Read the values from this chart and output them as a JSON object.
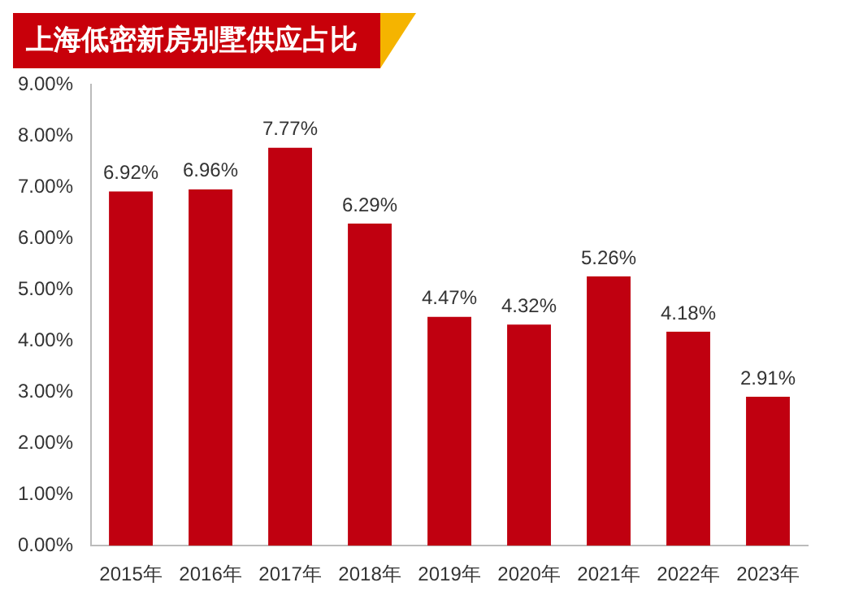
{
  "chart_data": {
    "type": "bar",
    "title": "上海低密新房别墅供应占比",
    "categories": [
      "2015年",
      "2016年",
      "2017年",
      "2018年",
      "2019年",
      "2020年",
      "2021年",
      "2022年",
      "2023年"
    ],
    "values": [
      6.92,
      6.96,
      7.77,
      6.29,
      4.47,
      4.32,
      5.26,
      4.18,
      2.91
    ],
    "value_labels": [
      "6.92%",
      "6.96%",
      "7.77%",
      "6.29%",
      "4.47%",
      "4.32%",
      "5.26%",
      "4.18%",
      "2.91%"
    ],
    "color": "#c00010",
    "ylim": [
      0,
      9
    ],
    "yticks": [
      {
        "value": 0,
        "label": "0.00%"
      },
      {
        "value": 1,
        "label": "1.00%"
      },
      {
        "value": 2,
        "label": "2.00%"
      },
      {
        "value": 3,
        "label": "3.00%"
      },
      {
        "value": 4,
        "label": "4.00%"
      },
      {
        "value": 5,
        "label": "5.00%"
      },
      {
        "value": 6,
        "label": "6.00%"
      },
      {
        "value": 7,
        "label": "7.00%"
      },
      {
        "value": 8,
        "label": "8.00%"
      },
      {
        "value": 9,
        "label": "9.00%"
      }
    ],
    "grid": false,
    "legend": false
  }
}
